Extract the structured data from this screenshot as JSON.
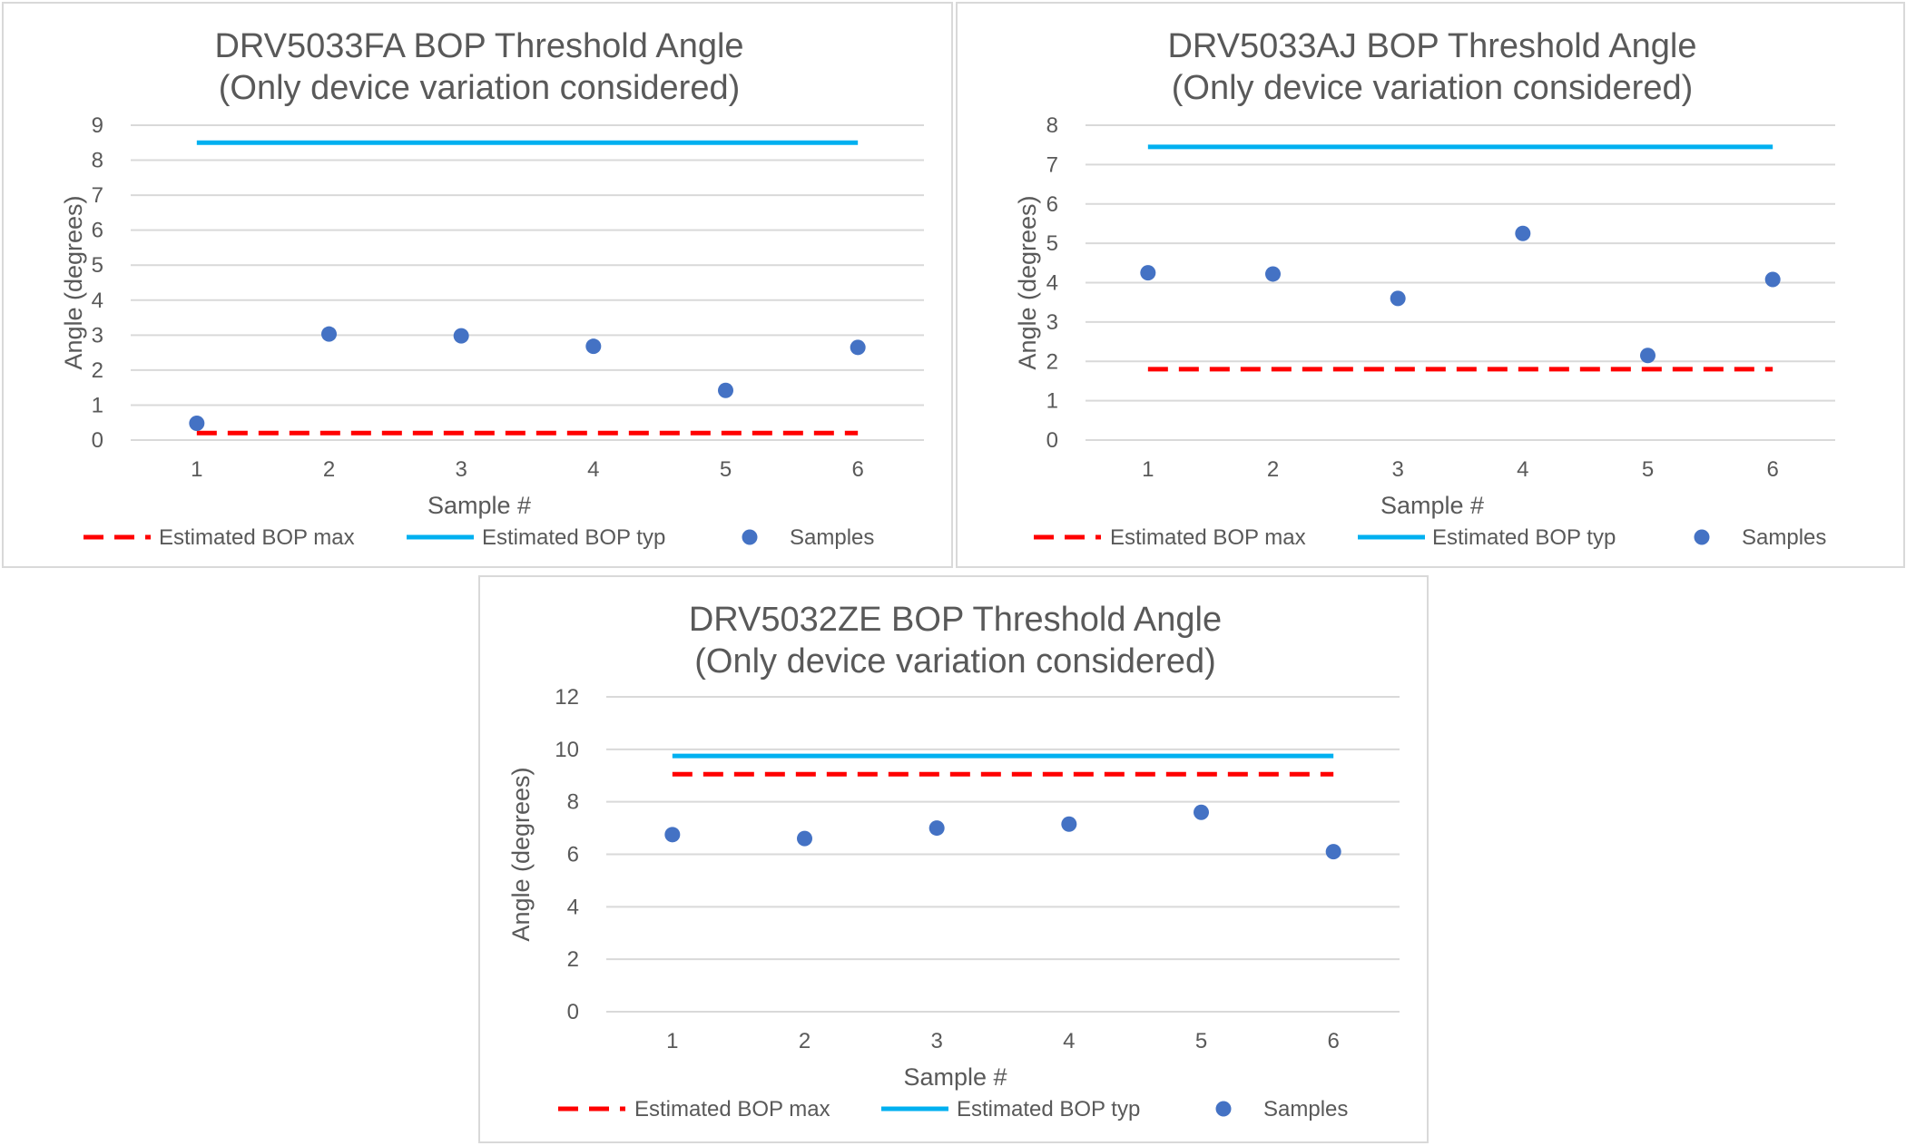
{
  "colors": {
    "max_line": "#ff0000",
    "typ_line": "#00b0f0",
    "samples": "#4472c4",
    "grid": "#d9d9d9",
    "text": "#595959"
  },
  "chart_data": [
    {
      "type": "scatter",
      "title": "DRV5033FA BOP Threshold Angle",
      "subtitle": "(Only device variation considered)",
      "xlabel": "Sample #",
      "ylabel": "Angle (degrees)",
      "categories": [
        "1",
        "2",
        "3",
        "4",
        "5",
        "6"
      ],
      "ylim": [
        0,
        9
      ],
      "yticks": [
        "0",
        "1",
        "2",
        "3",
        "4",
        "5",
        "6",
        "7",
        "8",
        "9"
      ],
      "grid": true,
      "legend_position": "bottom",
      "series": [
        {
          "name": "Estimated BOP max",
          "kind": "line",
          "style": "dashed",
          "values": [
            0.2,
            0.2,
            0.2,
            0.2,
            0.2,
            0.2
          ]
        },
        {
          "name": "Estimated BOP typ",
          "kind": "line",
          "style": "solid",
          "values": [
            8.5,
            8.5,
            8.5,
            8.5,
            8.5,
            8.5
          ]
        },
        {
          "name": "Samples",
          "kind": "scatter",
          "values": [
            0.48,
            3.03,
            2.98,
            2.68,
            1.42,
            2.65
          ]
        }
      ]
    },
    {
      "type": "scatter",
      "title": "DRV5033AJ BOP Threshold Angle",
      "subtitle": "(Only device variation considered)",
      "xlabel": "Sample #",
      "ylabel": "Angle (degrees)",
      "categories": [
        "1",
        "2",
        "3",
        "4",
        "5",
        "6"
      ],
      "ylim": [
        0,
        8
      ],
      "yticks": [
        "0",
        "1",
        "2",
        "3",
        "4",
        "5",
        "6",
        "7",
        "8"
      ],
      "grid": true,
      "legend_position": "bottom",
      "series": [
        {
          "name": "Estimated BOP max",
          "kind": "line",
          "style": "dashed",
          "values": [
            1.8,
            1.8,
            1.8,
            1.8,
            1.8,
            1.8
          ]
        },
        {
          "name": "Estimated BOP typ",
          "kind": "line",
          "style": "solid",
          "values": [
            7.45,
            7.45,
            7.45,
            7.45,
            7.45,
            7.45
          ]
        },
        {
          "name": "Samples",
          "kind": "scatter",
          "values": [
            4.25,
            4.22,
            3.6,
            5.25,
            2.15,
            4.08
          ]
        }
      ]
    },
    {
      "type": "scatter",
      "title": "DRV5032ZE BOP Threshold Angle",
      "subtitle": "(Only device variation considered)",
      "xlabel": "Sample #",
      "ylabel": "Angle (degrees)",
      "categories": [
        "1",
        "2",
        "3",
        "4",
        "5",
        "6"
      ],
      "ylim": [
        0,
        12
      ],
      "yticks": [
        "0",
        "2",
        "4",
        "6",
        "8",
        "10",
        "12"
      ],
      "grid": true,
      "legend_position": "bottom",
      "series": [
        {
          "name": "Estimated BOP max",
          "kind": "line",
          "style": "dashed",
          "values": [
            9.05,
            9.05,
            9.05,
            9.05,
            9.05,
            9.05
          ]
        },
        {
          "name": "Estimated BOP typ",
          "kind": "line",
          "style": "solid",
          "values": [
            9.75,
            9.75,
            9.75,
            9.75,
            9.75,
            9.75
          ]
        },
        {
          "name": "Samples",
          "kind": "scatter",
          "values": [
            6.75,
            6.6,
            7.0,
            7.15,
            7.6,
            6.1
          ]
        }
      ]
    }
  ]
}
